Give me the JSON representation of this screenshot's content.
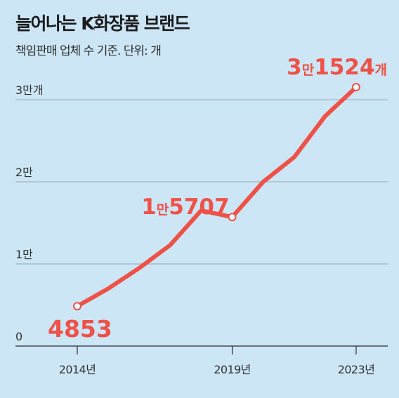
{
  "title": "늘어나는 K화장품 브랜드",
  "subtitle": "책임판매 업체 수 기준. 단위: 개",
  "colors": {
    "line": "#ee5148",
    "background": "#cde6f5",
    "grid": "#8fa7b6"
  },
  "chart_data": {
    "type": "line",
    "title": "늘어나는 K화장품 브랜드",
    "subtitle": "책임판매 업체 수 기준. 단위: 개",
    "unit": "개",
    "x": [
      2014,
      2015,
      2016,
      2017,
      2018,
      2019,
      2020,
      2021,
      2022,
      2023
    ],
    "values": [
      4853,
      7000,
      9500,
      12300,
      16500,
      15707,
      20000,
      23000,
      28000,
      31524
    ],
    "ylim": [
      0,
      30000
    ],
    "yticks": [
      {
        "value": 0,
        "label": "0"
      },
      {
        "value": 10000,
        "label": "1만"
      },
      {
        "value": 20000,
        "label": "2만"
      },
      {
        "value": 30000,
        "label": "3만개"
      }
    ],
    "xticks": [
      {
        "value": 2014,
        "label": "2014년"
      },
      {
        "value": 2019,
        "label": "2019년"
      },
      {
        "value": 2023,
        "label": "2023년"
      }
    ],
    "annotations": [
      {
        "x": 2014,
        "value": 4853,
        "big": "4853",
        "small": ""
      },
      {
        "x": 2019,
        "value": 15707,
        "big1": "1",
        "small": "만",
        "big2": "5707"
      },
      {
        "x": 2023,
        "value": 31524,
        "big1": "3",
        "small": "만",
        "big2": "1524",
        "suffix": "개"
      }
    ],
    "grid": true,
    "legend": "none"
  }
}
